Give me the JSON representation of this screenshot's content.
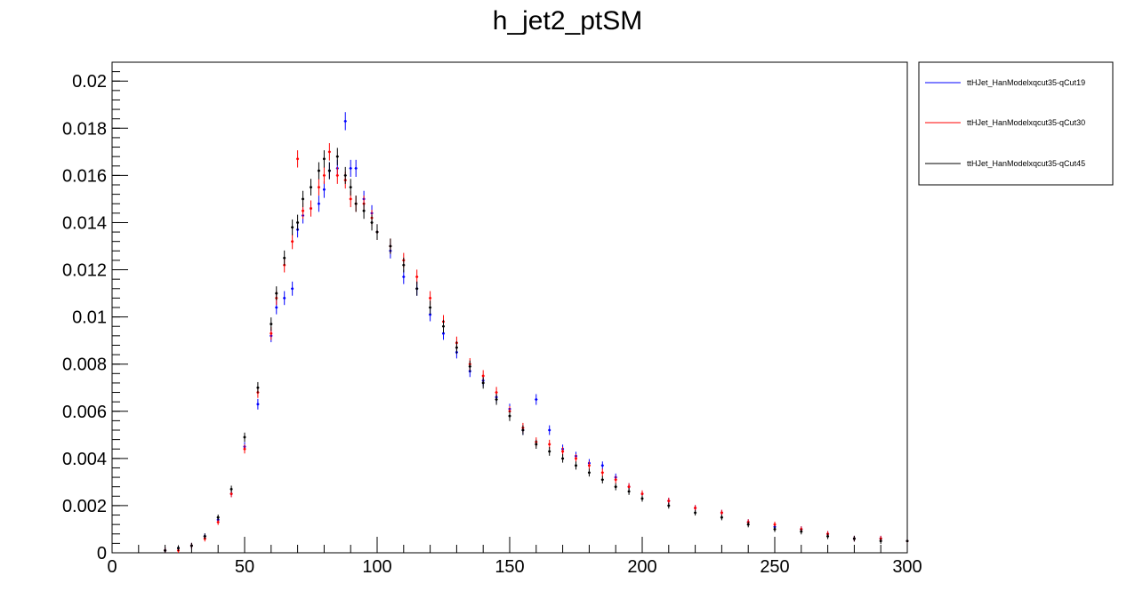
{
  "chart_data": {
    "type": "scatter",
    "title": "h_jet2_ptSM",
    "xlabel": "",
    "ylabel": "",
    "xlim": [
      0,
      300
    ],
    "ylim": [
      0,
      0.0208
    ],
    "x_ticks": [
      "0",
      "50",
      "100",
      "150",
      "200",
      "250",
      "300"
    ],
    "y_ticks": [
      "0",
      "0.002",
      "0.004",
      "0.006",
      "0.008",
      "0.01",
      "0.012",
      "0.014",
      "0.016",
      "0.018",
      "0.02"
    ],
    "grid": false,
    "legend_position": "top-right",
    "bin_width": 1,
    "series": [
      {
        "name": "ttHJet_HanModelxqcut35-qCut19",
        "color": "#0000ff",
        "x": [
          20,
          25,
          30,
          35,
          40,
          45,
          50,
          55,
          60,
          62,
          65,
          68,
          70,
          72,
          75,
          78,
          80,
          82,
          85,
          88,
          90,
          92,
          95,
          98,
          100,
          105,
          110,
          115,
          120,
          125,
          130,
          135,
          140,
          145,
          150,
          155,
          160,
          165,
          170,
          175,
          180,
          185,
          190,
          195,
          200,
          210,
          220,
          230,
          240,
          250,
          260,
          270,
          280,
          290,
          300
        ],
        "y": [
          0.0001,
          0.0002,
          0.0003,
          0.0007,
          0.0014,
          0.0025,
          0.0045,
          0.0063,
          0.0092,
          0.0104,
          0.0108,
          0.0112,
          0.0137,
          0.0143,
          0.0146,
          0.0148,
          0.0154,
          0.0162,
          0.0163,
          0.0183,
          0.0163,
          0.0163,
          0.015,
          0.0144,
          0.0136,
          0.0128,
          0.0117,
          0.0112,
          0.0101,
          0.0093,
          0.0085,
          0.0077,
          0.0073,
          0.0066,
          0.0061,
          0.0052,
          0.0065,
          0.0052,
          0.0044,
          0.0041,
          0.0038,
          0.0037,
          0.0032,
          0.0028,
          0.0025,
          0.0022,
          0.0019,
          0.0017,
          0.0013,
          0.0011,
          0.001,
          0.0008,
          0.0006,
          0.0006,
          0.0005
        ]
      },
      {
        "name": "ttHJet_HanModelxqcut35-qCut30",
        "color": "#ff0000",
        "x": [
          20,
          25,
          30,
          35,
          40,
          45,
          50,
          55,
          60,
          62,
          65,
          68,
          70,
          72,
          75,
          78,
          80,
          82,
          85,
          88,
          90,
          92,
          95,
          98,
          100,
          105,
          110,
          115,
          120,
          125,
          130,
          135,
          140,
          145,
          150,
          155,
          160,
          165,
          170,
          175,
          180,
          185,
          190,
          195,
          200,
          210,
          220,
          230,
          240,
          250,
          260,
          270,
          280,
          290,
          300
        ],
        "y": [
          0.0001,
          0.0001,
          0.0003,
          0.0006,
          0.0013,
          0.0025,
          0.0044,
          0.0068,
          0.0093,
          0.0108,
          0.0122,
          0.0132,
          0.0167,
          0.0145,
          0.0146,
          0.0155,
          0.016,
          0.017,
          0.016,
          0.0158,
          0.015,
          0.0148,
          0.0148,
          0.0142,
          0.0136,
          0.013,
          0.0124,
          0.0117,
          0.0108,
          0.0098,
          0.0089,
          0.008,
          0.0075,
          0.0068,
          0.006,
          0.0053,
          0.0047,
          0.0046,
          0.0043,
          0.004,
          0.0037,
          0.0034,
          0.0031,
          0.0028,
          0.0025,
          0.0022,
          0.0019,
          0.0017,
          0.0013,
          0.0012,
          0.001,
          0.0008,
          0.0006,
          0.0006,
          0.0005
        ]
      },
      {
        "name": "ttHJet_HanModelxqcut35-qCut45",
        "color": "#000000",
        "x": [
          20,
          25,
          30,
          35,
          40,
          45,
          50,
          55,
          60,
          62,
          65,
          68,
          70,
          72,
          75,
          78,
          80,
          82,
          85,
          88,
          90,
          92,
          95,
          98,
          100,
          105,
          110,
          115,
          120,
          125,
          130,
          135,
          140,
          145,
          150,
          155,
          160,
          165,
          170,
          175,
          180,
          185,
          190,
          195,
          200,
          210,
          220,
          230,
          240,
          250,
          260,
          270,
          280,
          290,
          300
        ],
        "y": [
          0.0001,
          0.0002,
          0.0003,
          0.0007,
          0.0015,
          0.0027,
          0.0049,
          0.007,
          0.0097,
          0.011,
          0.0125,
          0.0138,
          0.014,
          0.015,
          0.0155,
          0.0162,
          0.0167,
          0.0162,
          0.0168,
          0.016,
          0.0155,
          0.0148,
          0.0145,
          0.014,
          0.0136,
          0.013,
          0.0122,
          0.0112,
          0.0104,
          0.0096,
          0.0087,
          0.0079,
          0.0072,
          0.0065,
          0.0058,
          0.0052,
          0.0046,
          0.0043,
          0.004,
          0.0037,
          0.0034,
          0.0031,
          0.0028,
          0.0026,
          0.0023,
          0.002,
          0.0017,
          0.0015,
          0.0012,
          0.001,
          0.0009,
          0.0007,
          0.0006,
          0.0005,
          0.0005
        ]
      }
    ]
  }
}
